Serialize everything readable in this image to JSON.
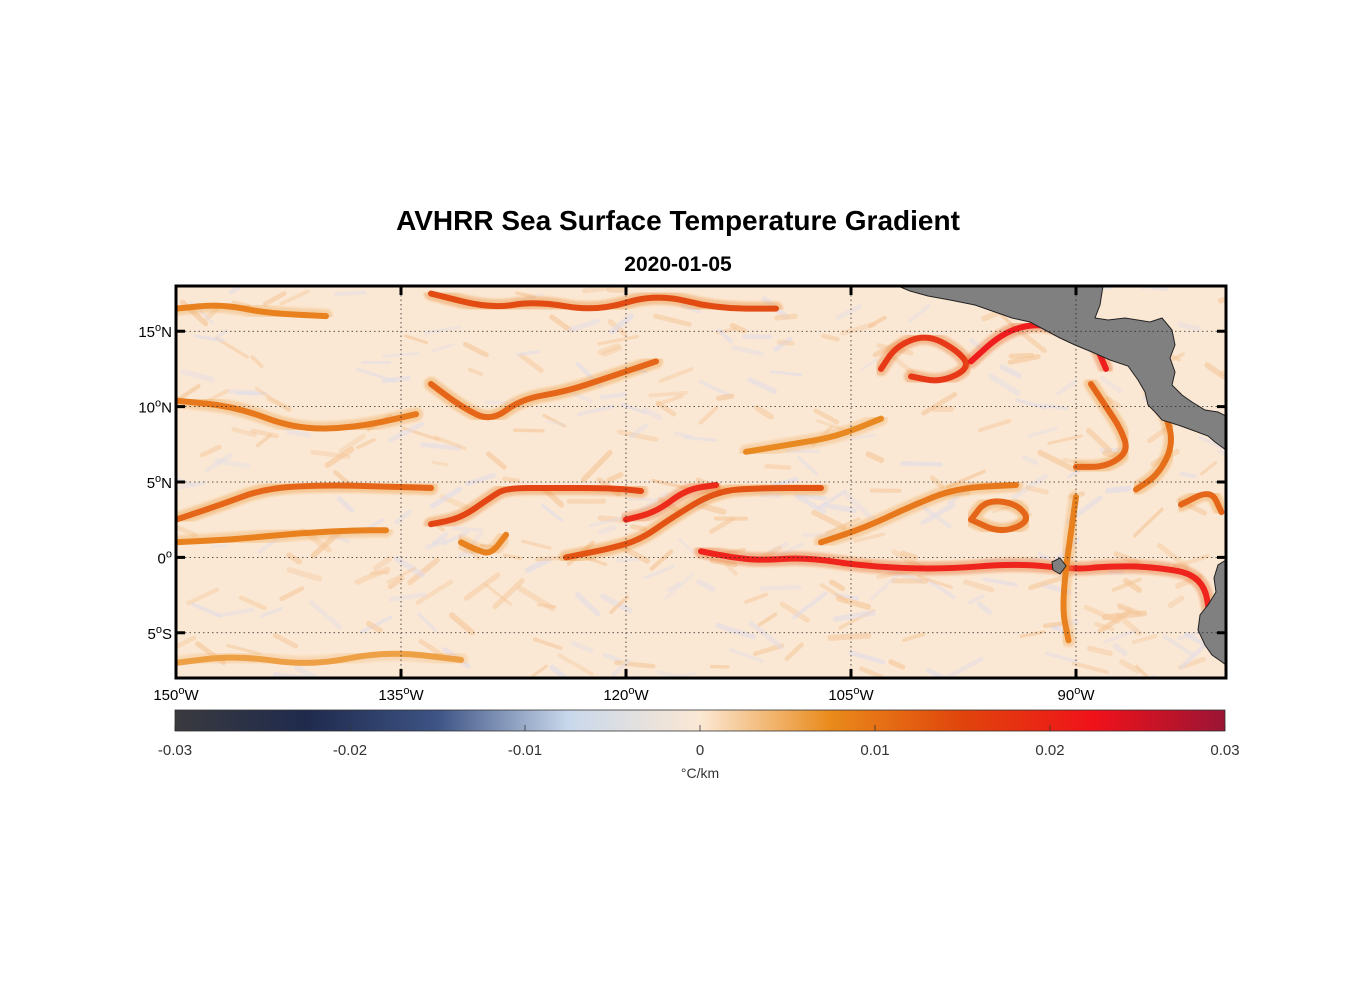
{
  "figure": {
    "title": "AVHRR Sea Surface Temperature Gradient",
    "subtitle": "2020-01-05"
  },
  "map": {
    "lon_range": [
      -150,
      -80
    ],
    "lat_range": [
      -8,
      18
    ],
    "gridlines": "dotted",
    "lat_ticks": [
      {
        "value": 15,
        "num": "15",
        "dir": "N"
      },
      {
        "value": 10,
        "num": "10",
        "dir": "N"
      },
      {
        "value": 5,
        "num": "5",
        "dir": "N"
      },
      {
        "value": 0,
        "num": "0",
        "dir": ""
      },
      {
        "value": -5,
        "num": "5",
        "dir": "S"
      }
    ],
    "lon_ticks": [
      {
        "value": -150,
        "num": "150",
        "dir": "W"
      },
      {
        "value": -135,
        "num": "135",
        "dir": "W"
      },
      {
        "value": -120,
        "num": "120",
        "dir": "W"
      },
      {
        "value": -105,
        "num": "105",
        "dir": "W"
      },
      {
        "value": -90,
        "num": "90",
        "dir": "W"
      }
    ],
    "land_color": "#808080",
    "ocean_background": "#fbe8d4",
    "fronts": [
      {
        "pts": [
          [
            -150,
            2.5
          ],
          [
            -147,
            3.5
          ],
          [
            -144,
            4.6
          ],
          [
            -140,
            4.8
          ],
          [
            -136,
            4.7
          ],
          [
            -133,
            4.6
          ]
        ],
        "strength": 0.012
      },
      {
        "pts": [
          [
            -150,
            1.0
          ],
          [
            -146,
            1.2
          ],
          [
            -142,
            1.6
          ],
          [
            -138,
            1.8
          ],
          [
            -136,
            1.8
          ]
        ],
        "strength": 0.009
      },
      {
        "pts": [
          [
            -133,
            2.2
          ],
          [
            -131,
            2.6
          ],
          [
            -129,
            4.0
          ],
          [
            -128,
            4.6
          ],
          [
            -125,
            4.6
          ],
          [
            -121,
            4.6
          ],
          [
            -119,
            4.4
          ]
        ],
        "strength": 0.016
      },
      {
        "pts": [
          [
            -131,
            1.0
          ],
          [
            -130,
            0.5
          ],
          [
            -129,
            0.2
          ],
          [
            -128,
            1.5
          ]
        ],
        "strength": 0.009
      },
      {
        "pts": [
          [
            -124,
            0.0
          ],
          [
            -121,
            0.6
          ],
          [
            -119,
            1.2
          ],
          [
            -117,
            2.6
          ],
          [
            -114,
            4.4
          ],
          [
            -111,
            4.6
          ],
          [
            -107,
            4.6
          ]
        ],
        "strength": 0.014
      },
      {
        "pts": [
          [
            -120,
            2.5
          ],
          [
            -118,
            3.0
          ],
          [
            -116,
            4.5
          ],
          [
            -114,
            4.8
          ]
        ],
        "strength": 0.02
      },
      {
        "pts": [
          [
            -115,
            0.4
          ],
          [
            -113,
            0.0
          ],
          [
            -111,
            -0.2
          ],
          [
            -108,
            0.0
          ],
          [
            -104,
            -0.6
          ],
          [
            -99,
            -0.8
          ],
          [
            -94,
            -0.4
          ],
          [
            -90,
            -0.8
          ],
          [
            -88,
            -0.6
          ],
          [
            -85,
            -0.6
          ],
          [
            -81.5,
            -1.2
          ],
          [
            -81,
            -4.5
          ]
        ],
        "strength": 0.021
      },
      {
        "pts": [
          [
            -107,
            1.0
          ],
          [
            -104,
            2.0
          ],
          [
            -101,
            3.4
          ],
          [
            -98,
            4.6
          ],
          [
            -94,
            4.8
          ]
        ],
        "strength": 0.01
      },
      {
        "pts": [
          [
            -97,
            2.5
          ],
          [
            -96,
            3.8
          ],
          [
            -94,
            3.6
          ],
          [
            -93,
            2.4
          ],
          [
            -95,
            1.6
          ],
          [
            -97,
            2.5
          ]
        ],
        "strength": 0.012
      },
      {
        "pts": [
          [
            -150,
            10.4
          ],
          [
            -146,
            10.0
          ],
          [
            -142,
            8.5
          ],
          [
            -138,
            8.6
          ],
          [
            -134,
            9.5
          ]
        ],
        "strength": 0.01
      },
      {
        "pts": [
          [
            -133,
            11.5
          ],
          [
            -131,
            10.0
          ],
          [
            -129,
            9.0
          ],
          [
            -127,
            10.5
          ],
          [
            -124,
            11.0
          ],
          [
            -121,
            12.0
          ],
          [
            -118,
            13.0
          ]
        ],
        "strength": 0.012
      },
      {
        "pts": [
          [
            -150,
            16.5
          ],
          [
            -147,
            16.8
          ],
          [
            -144,
            16.2
          ],
          [
            -140,
            16.0
          ]
        ],
        "strength": 0.009
      },
      {
        "pts": [
          [
            -133,
            17.5
          ],
          [
            -129,
            16.5
          ],
          [
            -126,
            17.0
          ],
          [
            -122,
            16.3
          ],
          [
            -118,
            17.5
          ],
          [
            -114,
            16.5
          ],
          [
            -110,
            16.5
          ]
        ],
        "strength": 0.015
      },
      {
        "pts": [
          [
            -103,
            12.5
          ],
          [
            -102,
            14.0
          ],
          [
            -100,
            14.8
          ],
          [
            -98,
            13.8
          ],
          [
            -97,
            12.6
          ],
          [
            -99,
            11.6
          ],
          [
            -101,
            12.0
          ]
        ],
        "strength": 0.018
      },
      {
        "pts": [
          [
            -97,
            13.0
          ],
          [
            -95,
            14.8
          ],
          [
            -93,
            15.5
          ],
          [
            -91,
            15.2
          ],
          [
            -89,
            14.8
          ],
          [
            -88,
            12.5
          ]
        ],
        "strength": 0.022
      },
      {
        "pts": [
          [
            -89,
            11.5
          ],
          [
            -88,
            10.0
          ],
          [
            -87,
            8.5
          ],
          [
            -86.5,
            7.0
          ],
          [
            -88,
            6.0
          ],
          [
            -90,
            6.0
          ]
        ],
        "strength": 0.012
      },
      {
        "pts": [
          [
            -85,
            11.0
          ],
          [
            -84,
            9.5
          ],
          [
            -83.5,
            7.5
          ],
          [
            -84.5,
            5.5
          ],
          [
            -86,
            4.5
          ]
        ],
        "strength": 0.011
      },
      {
        "pts": [
          [
            -90,
            4.0
          ],
          [
            -91,
            -3.0
          ],
          [
            -90.5,
            -5.5
          ]
        ],
        "strength": 0.009
      },
      {
        "pts": [
          [
            -83,
            3.5
          ],
          [
            -81,
            4.5
          ],
          [
            -80.3,
            3.0
          ]
        ],
        "strength": 0.012
      },
      {
        "pts": [
          [
            -150,
            -7.0
          ],
          [
            -146,
            -6.5
          ],
          [
            -141,
            -7.2
          ],
          [
            -136,
            -6.2
          ],
          [
            -131,
            -6.8
          ]
        ],
        "strength": 0.006
      },
      {
        "pts": [
          [
            -112,
            7.0
          ],
          [
            -109,
            7.5
          ],
          [
            -106,
            8.0
          ],
          [
            -103,
            9.2
          ]
        ],
        "strength": 0.008
      }
    ]
  },
  "colorbar": {
    "min": -0.03,
    "max": 0.03,
    "tick_values": [
      -0.03,
      -0.02,
      -0.01,
      0,
      0.01,
      0.02,
      0.03
    ],
    "tick_labels": [
      "-0.03",
      "-0.02",
      "-0.01",
      "0",
      "0.01",
      "0.02",
      "0.03"
    ],
    "unit": "°C/km",
    "colors": [
      "#3a3a3f",
      "#1f2a4d",
      "#3e5485",
      "#c9d8ec",
      "#fbe8d4",
      "#e98a1a",
      "#e0450c",
      "#f0121a",
      "#9a1535"
    ]
  }
}
